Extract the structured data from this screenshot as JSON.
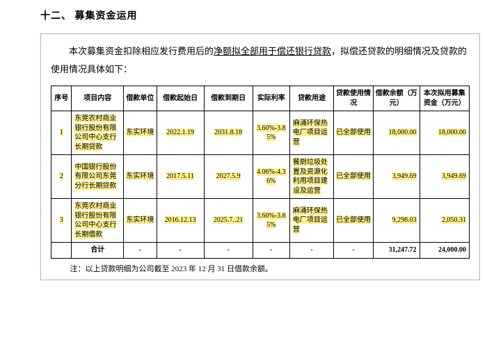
{
  "section_title": "十二、 募集资金运用",
  "intro_before": "本次募集资金扣除相应发行费用后的",
  "intro_hl": "净额拟全部用于偿还银行贷款",
  "intro_after": "，拟偿还贷款的明细情况及贷款的使用情况具体如下：",
  "headers": {
    "seq": "序号",
    "item": "项目内容",
    "unit": "借款单位",
    "start": "借款起始日",
    "end": "借款到期日",
    "rate": "实际利率",
    "use": "贷款用途",
    "status": "贷款使用情况",
    "balance": "借款余额（万元）",
    "fund": "本次拟用募集资金（万元）"
  },
  "rows": [
    {
      "seq": "1",
      "item": "东莞农村商业银行股份有限公司中心支行长期贷款",
      "unit": "东实环境",
      "start": "2022.1.19",
      "end": "2031.8.18",
      "rate": "3.60%-3.85%",
      "use": "麻涌环保热电厂项目运营",
      "status": "已全部使用",
      "balance": "18,000.00",
      "fund": "18,000.00"
    },
    {
      "seq": "2",
      "item": "中国银行股份有限公司东莞分行长期贷款",
      "unit": "东实环境",
      "start": "2017.5.11",
      "end": "2027.5.9",
      "rate": "4.06%-4.36%",
      "use": "餐厨垃圾处置及资源化利用项目建设及运营",
      "status": "已全部使用",
      "balance": "3,949.69",
      "fund": "3,949.69"
    },
    {
      "seq": "3",
      "item": "东莞农村商业银行股份有限公司中心支行长期借款",
      "unit": "东实环境",
      "start": "2016.12.13",
      "end": "2025.7..21",
      "rate": "3.60%-3.85%",
      "use": "麻涌环保热电厂项目运营",
      "status": "已全部使用",
      "balance": "9,298.03",
      "fund": "2,050.31"
    }
  ],
  "total": {
    "label": "合计",
    "dash": "-",
    "balance": "31,247.72",
    "fund": "24,000.00"
  },
  "footnote": "注：以上贷款明细为公司截至 2023 年 12 月 31 日借款余额。",
  "colors": {
    "highlight": "#fef08a",
    "border": "#a0b8c8"
  }
}
